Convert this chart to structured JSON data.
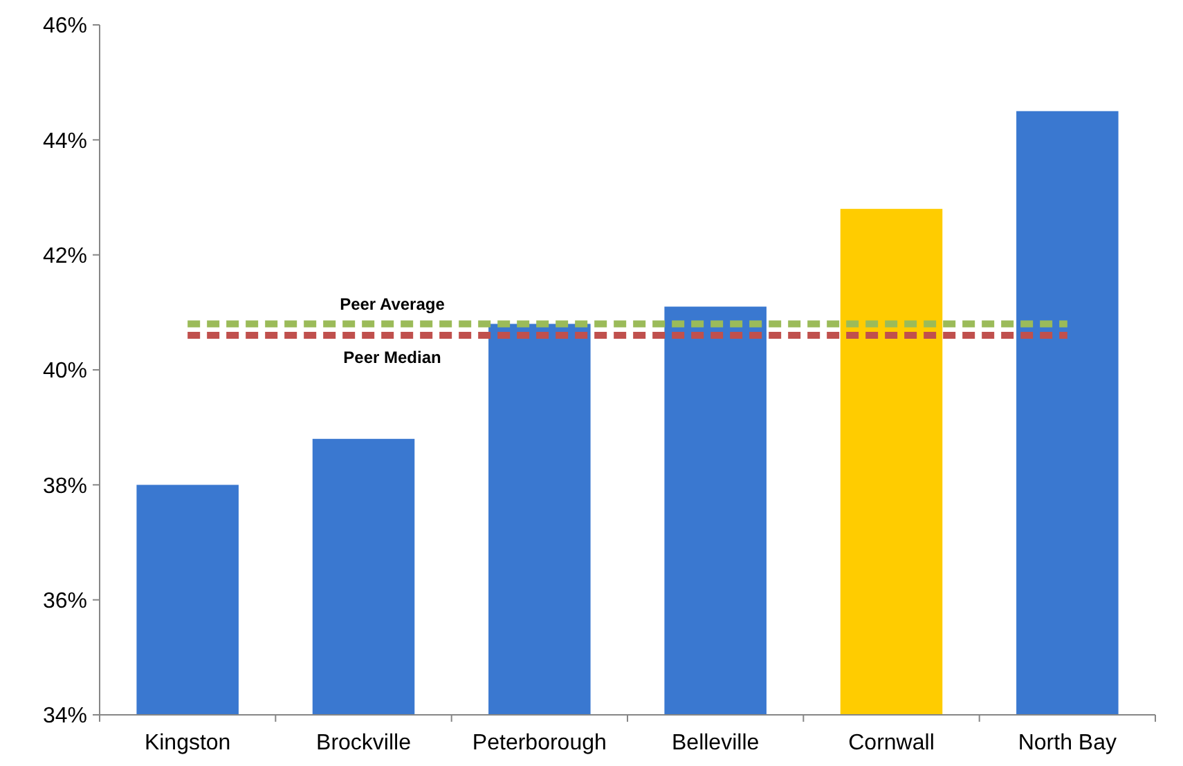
{
  "chart_data": {
    "type": "bar",
    "categories": [
      "Kingston",
      "Brockville",
      "Peterborough",
      "Belleville",
      "Cornwall",
      "North Bay"
    ],
    "values": [
      38.0,
      38.8,
      40.8,
      41.1,
      42.8,
      44.5
    ],
    "colors": [
      "#3a78d0",
      "#3a78d0",
      "#3a78d0",
      "#3a78d0",
      "#ffcc00",
      "#3a78d0"
    ],
    "ylim": [
      34,
      46
    ],
    "yticks": [
      {
        "value": 34,
        "label": "34%"
      },
      {
        "value": 36,
        "label": "36%"
      },
      {
        "value": 38,
        "label": "38%"
      },
      {
        "value": 40,
        "label": "40%"
      },
      {
        "value": 42,
        "label": "42%"
      },
      {
        "value": 44,
        "label": "44%"
      },
      {
        "value": 46,
        "label": "46%"
      }
    ],
    "grid": false,
    "ref_lines": [
      {
        "axis": "y",
        "value": 40.8,
        "label": "Peer Average",
        "color": "#9bbb59",
        "line_style": "dashed"
      },
      {
        "axis": "y",
        "value": 40.6,
        "label": "Peer Median",
        "color": "#c0504d",
        "line_style": "dashed"
      }
    ]
  }
}
